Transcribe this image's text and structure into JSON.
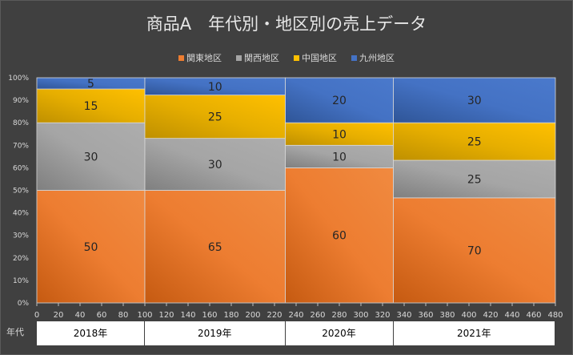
{
  "title": "商品A　年代別・地区別の売上データ",
  "legend": [
    {
      "name": "関東地区",
      "color": "#ED7D31"
    },
    {
      "name": "関西地区",
      "color": "#A5A5A5"
    },
    {
      "name": "中国地区",
      "color": "#FFC000"
    },
    {
      "name": "九州地区",
      "color": "#4472C4"
    }
  ],
  "x_axis_caption": "年代",
  "chart_data": {
    "type": "marimekko",
    "title": "商品A　年代別・地区別の売上データ",
    "categories": [
      "2018年",
      "2019年",
      "2020年",
      "2021年"
    ],
    "widths": [
      100,
      130,
      100,
      150
    ],
    "series": [
      {
        "name": "関東地区",
        "values": [
          50,
          65,
          60,
          70
        ]
      },
      {
        "name": "関西地区",
        "values": [
          30,
          30,
          10,
          25
        ]
      },
      {
        "name": "中国地区",
        "values": [
          15,
          25,
          10,
          25
        ]
      },
      {
        "name": "九州地区",
        "values": [
          5,
          10,
          20,
          30
        ]
      }
    ],
    "y_ticks": [
      "0%",
      "10%",
      "20%",
      "30%",
      "40%",
      "50%",
      "60%",
      "70%",
      "80%",
      "90%",
      "100%"
    ],
    "x_ticks": [
      0,
      20,
      40,
      60,
      80,
      100,
      120,
      140,
      160,
      180,
      200,
      220,
      240,
      260,
      280,
      300,
      320,
      340,
      360,
      380,
      400,
      420,
      440,
      460,
      480
    ],
    "xlim": [
      0,
      480
    ],
    "ylim": [
      0,
      1
    ]
  }
}
